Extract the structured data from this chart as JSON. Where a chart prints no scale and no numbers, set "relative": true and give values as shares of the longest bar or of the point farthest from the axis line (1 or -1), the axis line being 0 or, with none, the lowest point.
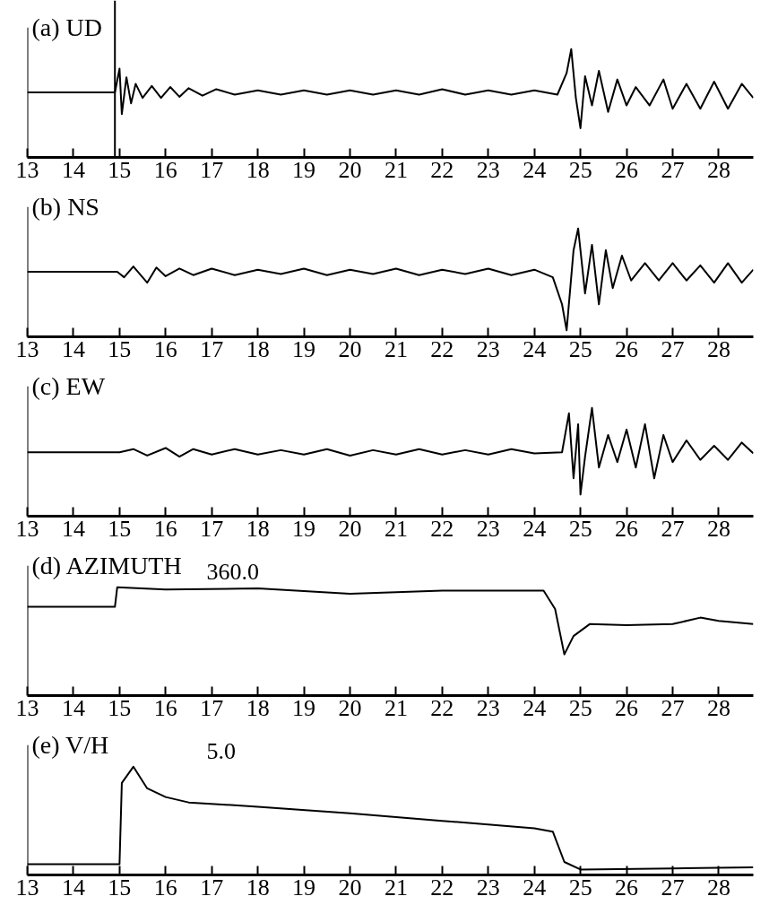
{
  "chart_data": [
    {
      "type": "line",
      "title": "(a) UD",
      "relative": true,
      "color": "#000000",
      "xlim": [
        13,
        28.75
      ],
      "xticks": [
        13,
        14,
        15,
        16,
        17,
        18,
        19,
        20,
        21,
        22,
        23,
        24,
        25,
        26,
        27,
        28
      ],
      "ref_lines": [
        {
          "axis": "x",
          "value": 14.9
        }
      ],
      "x": [
        13,
        14.9,
        15.0,
        15.05,
        15.15,
        15.25,
        15.35,
        15.5,
        15.7,
        15.9,
        16.1,
        16.3,
        16.5,
        16.8,
        17.1,
        17.5,
        18.0,
        18.5,
        19.0,
        19.5,
        20.0,
        20.5,
        21.0,
        21.5,
        22.0,
        22.5,
        23.0,
        23.5,
        24.0,
        24.5,
        24.7,
        24.8,
        24.9,
        25.0,
        25.1,
        25.25,
        25.4,
        25.6,
        25.8,
        26.0,
        26.2,
        26.5,
        26.8,
        27.0,
        27.3,
        27.6,
        27.9,
        28.2,
        28.5,
        28.75
      ],
      "values": [
        0.6,
        0.6,
        0.82,
        0.4,
        0.74,
        0.5,
        0.68,
        0.55,
        0.66,
        0.55,
        0.65,
        0.56,
        0.64,
        0.57,
        0.63,
        0.58,
        0.62,
        0.58,
        0.62,
        0.58,
        0.62,
        0.58,
        0.62,
        0.58,
        0.63,
        0.58,
        0.62,
        0.58,
        0.62,
        0.58,
        0.78,
        1.0,
        0.55,
        0.27,
        0.75,
        0.48,
        0.8,
        0.42,
        0.72,
        0.48,
        0.65,
        0.48,
        0.72,
        0.45,
        0.68,
        0.45,
        0.7,
        0.45,
        0.68,
        0.55
      ]
    },
    {
      "type": "line",
      "title": "(b) NS",
      "relative": true,
      "color": "#000000",
      "xlim": [
        13,
        28.75
      ],
      "xticks": [
        13,
        14,
        15,
        16,
        17,
        18,
        19,
        20,
        21,
        22,
        23,
        24,
        25,
        26,
        27,
        28
      ],
      "x": [
        13,
        14.95,
        15.1,
        15.3,
        15.5,
        15.6,
        15.8,
        16.0,
        16.3,
        16.6,
        17.0,
        17.5,
        18.0,
        18.5,
        19.0,
        19.5,
        20.0,
        20.5,
        21.0,
        21.5,
        22.0,
        22.5,
        23.0,
        23.5,
        24.0,
        24.4,
        24.6,
        24.7,
        24.85,
        24.95,
        25.1,
        25.25,
        25.4,
        25.55,
        25.7,
        25.9,
        26.1,
        26.4,
        26.7,
        27.0,
        27.3,
        27.6,
        27.9,
        28.2,
        28.5,
        28.75
      ],
      "values": [
        0.6,
        0.6,
        0.55,
        0.65,
        0.55,
        0.5,
        0.64,
        0.56,
        0.63,
        0.57,
        0.63,
        0.57,
        0.62,
        0.58,
        0.63,
        0.57,
        0.62,
        0.58,
        0.63,
        0.57,
        0.62,
        0.58,
        0.63,
        0.57,
        0.62,
        0.55,
        0.3,
        0.06,
        0.8,
        1.0,
        0.4,
        0.85,
        0.3,
        0.8,
        0.45,
        0.75,
        0.52,
        0.68,
        0.52,
        0.68,
        0.52,
        0.66,
        0.5,
        0.68,
        0.5,
        0.62
      ]
    },
    {
      "type": "line",
      "title": "(c) EW",
      "relative": true,
      "color": "#000000",
      "xlim": [
        13,
        28.75
      ],
      "xticks": [
        13,
        14,
        15,
        16,
        17,
        18,
        19,
        20,
        21,
        22,
        23,
        24,
        25,
        26,
        27,
        28
      ],
      "x": [
        13,
        15.0,
        15.3,
        15.6,
        16.0,
        16.3,
        16.6,
        17.0,
        17.5,
        18.0,
        18.5,
        19.0,
        19.5,
        20.0,
        20.5,
        21.0,
        21.5,
        22.0,
        22.5,
        23.0,
        23.5,
        24.0,
        24.6,
        24.75,
        24.85,
        24.95,
        25.0,
        25.1,
        25.25,
        25.4,
        25.6,
        25.8,
        26.0,
        26.2,
        26.4,
        26.6,
        26.8,
        27.0,
        27.3,
        27.6,
        27.9,
        28.2,
        28.5,
        28.75
      ],
      "values": [
        0.59,
        0.59,
        0.62,
        0.56,
        0.63,
        0.55,
        0.62,
        0.57,
        0.62,
        0.57,
        0.61,
        0.57,
        0.62,
        0.56,
        0.61,
        0.57,
        0.62,
        0.57,
        0.61,
        0.57,
        0.62,
        0.58,
        0.59,
        0.95,
        0.35,
        0.85,
        0.2,
        0.55,
        1.0,
        0.45,
        0.75,
        0.5,
        0.8,
        0.45,
        0.85,
        0.35,
        0.75,
        0.5,
        0.7,
        0.52,
        0.65,
        0.52,
        0.68,
        0.58
      ]
    },
    {
      "type": "line",
      "title": "(d) AZIMUTH",
      "relative": true,
      "color": "#000000",
      "xlim": [
        13,
        28.75
      ],
      "xticks": [
        13,
        14,
        15,
        16,
        17,
        18,
        19,
        20,
        21,
        22,
        23,
        24,
        25,
        26,
        27,
        28
      ],
      "annotations": [
        "360.0"
      ],
      "x": [
        13,
        14.9,
        14.95,
        16,
        18,
        20,
        22,
        24.2,
        24.45,
        24.65,
        24.85,
        25.2,
        26,
        27,
        27.6,
        28,
        28.75
      ],
      "values": [
        0.82,
        0.82,
        1.0,
        0.98,
        0.99,
        0.94,
        0.97,
        0.97,
        0.8,
        0.38,
        0.55,
        0.66,
        0.65,
        0.66,
        0.72,
        0.69,
        0.66
      ]
    },
    {
      "type": "line",
      "title": "(e) V/H",
      "relative": true,
      "color": "#000000",
      "xlim": [
        13,
        28.75
      ],
      "xticks": [
        13,
        14,
        15,
        16,
        17,
        18,
        19,
        20,
        21,
        22,
        23,
        24,
        25,
        26,
        27,
        28
      ],
      "annotations": [
        "5.0"
      ],
      "x": [
        13,
        15.0,
        15.05,
        15.3,
        15.6,
        16,
        16.5,
        18,
        20,
        22,
        24,
        24.4,
        24.65,
        25,
        27,
        28.75
      ],
      "values": [
        0.1,
        0.1,
        0.85,
        1.0,
        0.8,
        0.72,
        0.67,
        0.63,
        0.57,
        0.5,
        0.43,
        0.4,
        0.12,
        0.05,
        0.06,
        0.07
      ]
    }
  ]
}
